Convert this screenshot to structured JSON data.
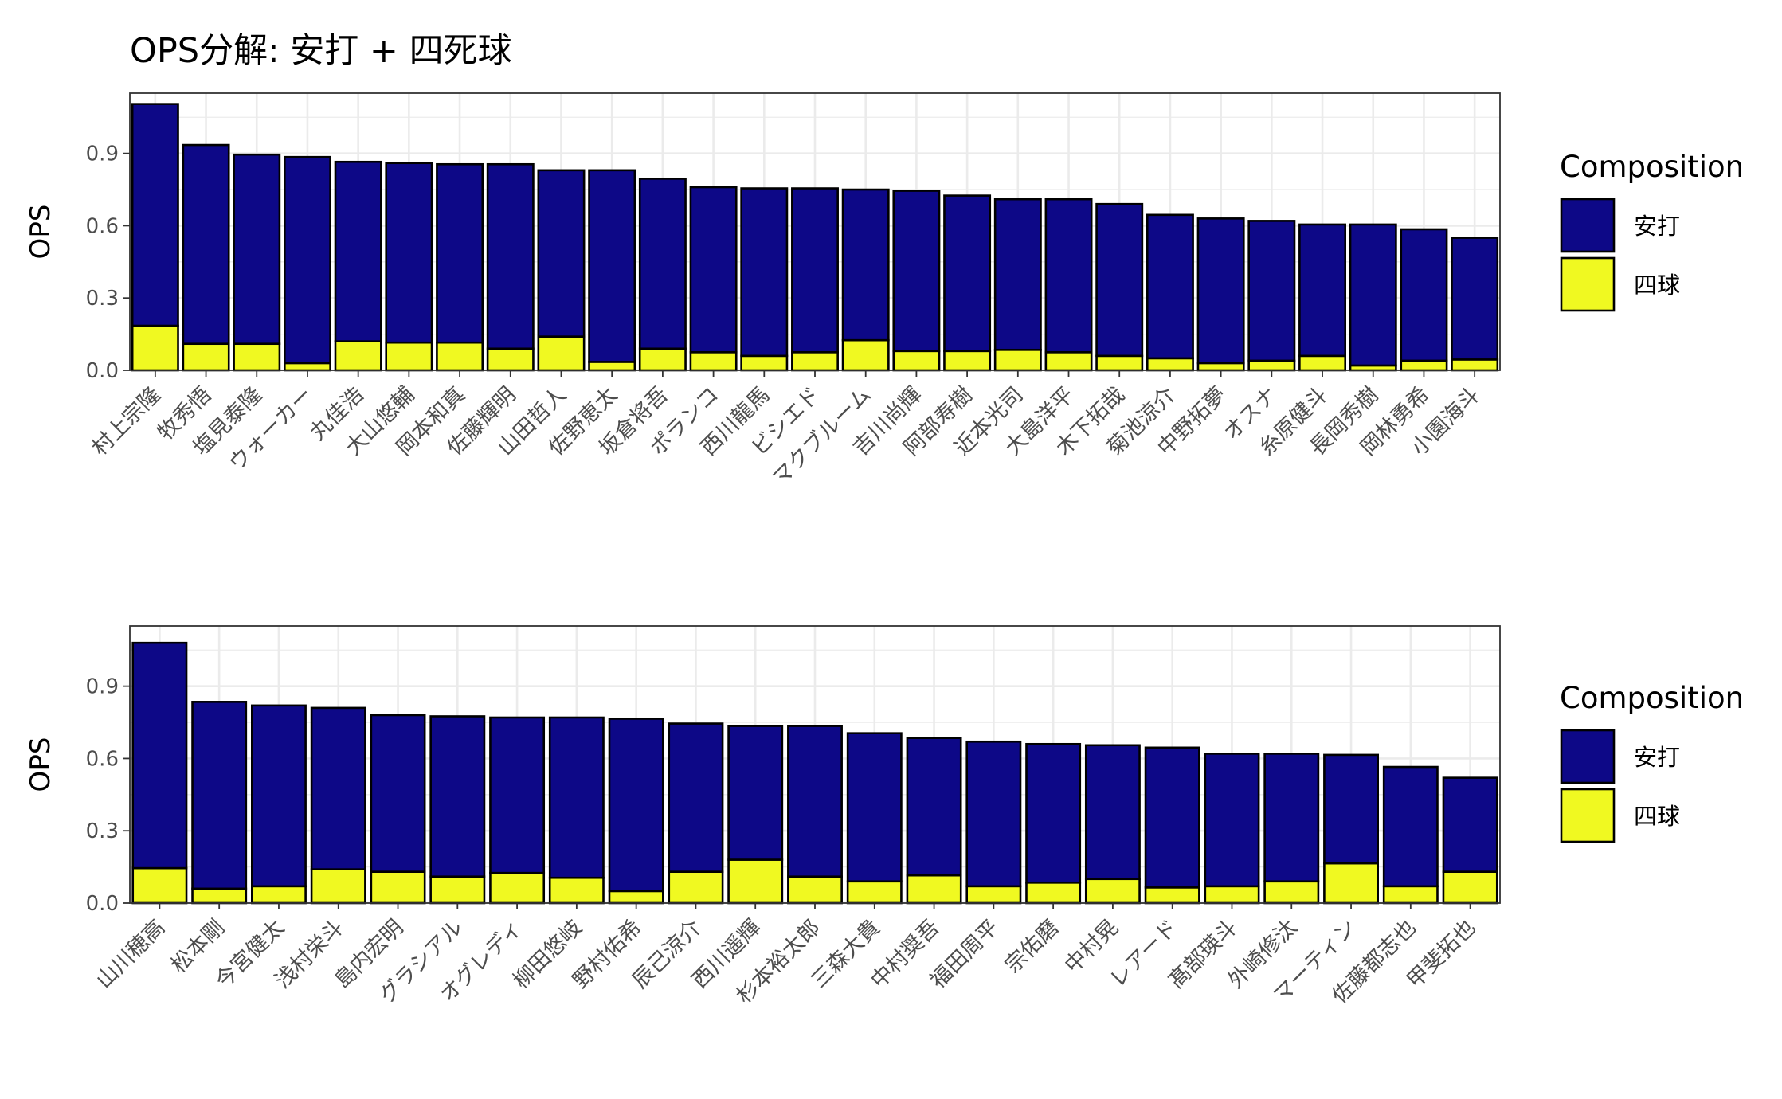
{
  "title": "OPS分解: 安打 + 四死球",
  "colors": {
    "hits": "#0d0887",
    "walks": "#f0f921",
    "outline": "#000000",
    "grid": "#ebebeb",
    "panel_border": "#333333",
    "axis_text": "#4d4d4d"
  },
  "chart_data": [
    {
      "type": "bar",
      "stacked": true,
      "ylabel": "OPS",
      "xlabel": "",
      "ylim": [
        0,
        1.15
      ],
      "y_ticks": [
        "0.0",
        "0.3",
        "0.6",
        "0.9"
      ],
      "grid": true,
      "legend": {
        "title": "Composition",
        "position": "right",
        "entries": [
          "安打",
          "四球"
        ]
      },
      "categories": [
        "村上宗隆",
        "牧秀悟",
        "塩見泰隆",
        "ウォーカー",
        "丸佳浩",
        "大山悠輔",
        "岡本和真",
        "佐藤輝明",
        "山田哲人",
        "佐野恵太",
        "坂倉将吾",
        "ポランコ",
        "西川龍馬",
        "ビシエド",
        "マクブルーム",
        "吉川尚輝",
        "阿部寿樹",
        "近本光司",
        "大島洋平",
        "木下拓哉",
        "菊池涼介",
        "中野拓夢",
        "オスナ",
        "糸原健斗",
        "長岡秀樹",
        "岡林勇希",
        "小園海斗"
      ],
      "series": [
        {
          "name": "四球",
          "values": [
            0.185,
            0.11,
            0.11,
            0.03,
            0.12,
            0.115,
            0.115,
            0.09,
            0.14,
            0.035,
            0.09,
            0.075,
            0.06,
            0.075,
            0.125,
            0.08,
            0.08,
            0.085,
            0.075,
            0.06,
            0.05,
            0.03,
            0.04,
            0.06,
            0.02,
            0.04,
            0.045
          ]
        },
        {
          "name": "安打",
          "values": [
            0.92,
            0.825,
            0.785,
            0.855,
            0.745,
            0.745,
            0.74,
            0.765,
            0.69,
            0.795,
            0.705,
            0.685,
            0.695,
            0.68,
            0.625,
            0.665,
            0.645,
            0.625,
            0.635,
            0.63,
            0.595,
            0.6,
            0.58,
            0.545,
            0.585,
            0.545,
            0.505
          ]
        }
      ]
    },
    {
      "type": "bar",
      "stacked": true,
      "ylabel": "OPS",
      "xlabel": "",
      "ylim": [
        0,
        1.15
      ],
      "y_ticks": [
        "0.0",
        "0.3",
        "0.6",
        "0.9"
      ],
      "grid": true,
      "legend": {
        "title": "Composition",
        "position": "right",
        "entries": [
          "安打",
          "四球"
        ]
      },
      "categories": [
        "山川穂高",
        "松本剛",
        "今宮健太",
        "浅村栄斗",
        "島内宏明",
        "グラシアル",
        "オグレディ",
        "柳田悠岐",
        "野村佑希",
        "辰己涼介",
        "西川遥輝",
        "杉本裕太郎",
        "三森大貴",
        "中村奨吾",
        "福田周平",
        "宗佑磨",
        "中村晃",
        "レアード",
        "髙部瑛斗",
        "外崎修汰",
        "マーティン",
        "佐藤都志也",
        "甲斐拓也"
      ],
      "series": [
        {
          "name": "四球",
          "values": [
            0.145,
            0.06,
            0.07,
            0.14,
            0.13,
            0.11,
            0.125,
            0.105,
            0.05,
            0.13,
            0.18,
            0.11,
            0.09,
            0.115,
            0.07,
            0.085,
            0.1,
            0.065,
            0.07,
            0.09,
            0.165,
            0.07,
            0.13
          ]
        },
        {
          "name": "安打",
          "values": [
            0.935,
            0.775,
            0.75,
            0.67,
            0.65,
            0.665,
            0.645,
            0.665,
            0.715,
            0.615,
            0.555,
            0.625,
            0.615,
            0.57,
            0.6,
            0.575,
            0.555,
            0.58,
            0.55,
            0.53,
            0.45,
            0.495,
            0.39
          ]
        }
      ]
    }
  ]
}
